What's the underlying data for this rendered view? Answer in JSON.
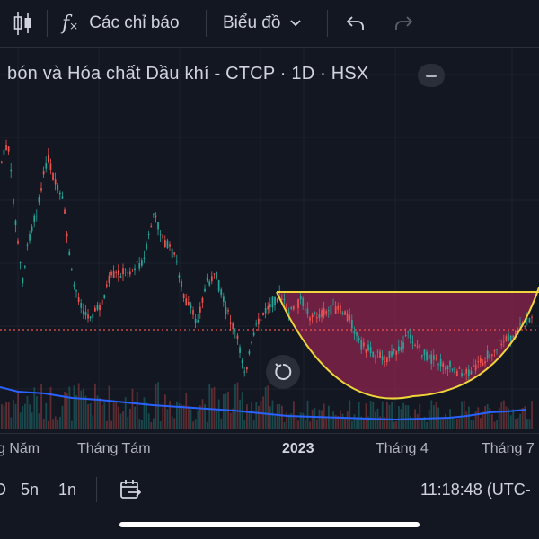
{
  "toolbar": {
    "indicators_label": "Các chỉ báo",
    "chart_type_label": "Biểu đồ"
  },
  "chart": {
    "title": "bón và Hóa chất Dầu khí - CTCP · 1D · HSX",
    "colors": {
      "background": "#131722",
      "up": "#26a69a",
      "down": "#ef5350",
      "volume_line": "#2962ff",
      "pattern_fill": "#8e244d",
      "pattern_line": "#f0d43a",
      "price_line": "#ef5350"
    },
    "x_labels": [
      "g Năm",
      "Tháng Tám",
      "2023",
      "Tháng 4",
      "Tháng 7"
    ],
    "pattern": "cup"
  },
  "bottom_bar": {
    "range_d": "D",
    "range_5n": "5n",
    "range_1n": "1n",
    "clock": "11:18:48 (UTC-"
  }
}
